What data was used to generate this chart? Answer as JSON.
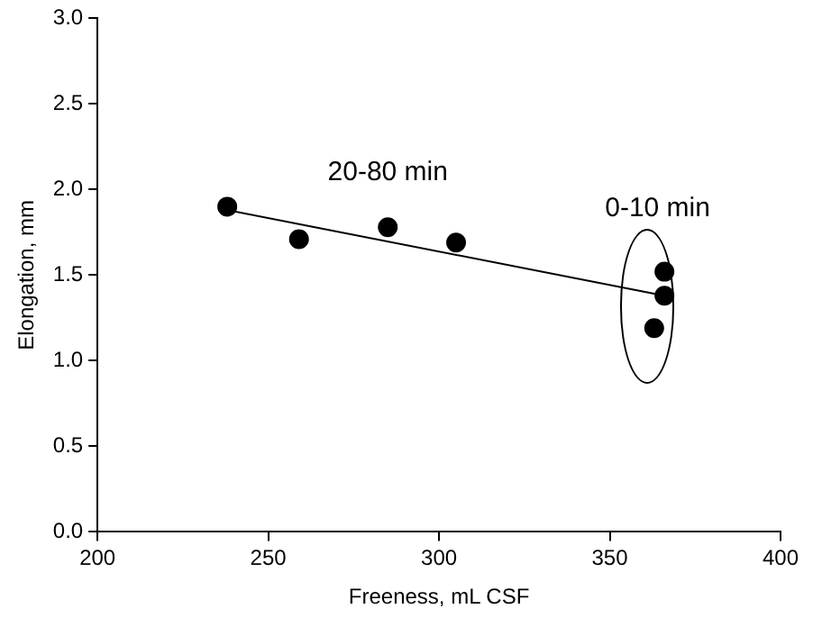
{
  "chart_data": {
    "type": "scatter",
    "xlabel": "Freeness, mL CSF",
    "ylabel": "Elongation, mm",
    "series": [
      {
        "color": "#000000",
        "marker": "circle",
        "x": [
          238,
          259,
          285,
          305,
          366,
          366,
          363
        ],
        "values": [
          1.9,
          1.71,
          1.78,
          1.69,
          1.52,
          1.38,
          1.19
        ]
      },
      {
        "type": "line",
        "color": "#000000",
        "marker": "none",
        "x": [
          238,
          366
        ],
        "values": [
          1.88,
          1.38
        ]
      }
    ],
    "xlim": [
      200,
      400
    ],
    "xticks": [
      200,
      250,
      300,
      350,
      400
    ],
    "ylim": [
      0,
      3
    ],
    "yticks": [
      {
        "value": 0,
        "label": "0.0"
      },
      {
        "value": 0.5,
        "label": "0.5"
      },
      {
        "value": 1,
        "label": "1.0"
      },
      {
        "value": 1.5,
        "label": "1.5"
      },
      {
        "value": 2,
        "label": "2.0"
      },
      {
        "value": 2.5,
        "label": "2.5"
      },
      {
        "value": 3,
        "label": "3.0"
      }
    ],
    "annotations": [
      "20-80 min",
      "0-10 min"
    ],
    "grid": false,
    "legend": false
  }
}
